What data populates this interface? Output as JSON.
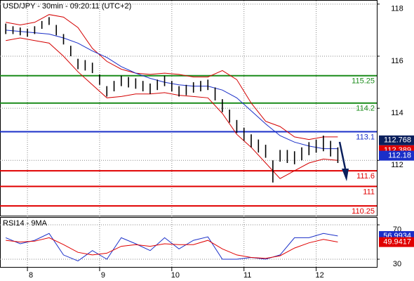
{
  "chart_data": [
    {
      "type": "ohlc",
      "title": "USD/JPY - 30min - 09:20:11 (UTC+2)",
      "x": [
        7.7,
        7.8,
        7.9,
        8.0,
        8.1,
        8.2,
        8.3,
        8.4,
        8.5,
        8.6,
        8.7,
        8.8,
        8.9,
        9.0,
        9.1,
        9.2,
        9.3,
        9.4,
        9.5,
        9.6,
        9.7,
        9.8,
        9.9,
        10.0,
        10.1,
        10.2,
        10.3,
        10.4,
        10.5,
        10.6,
        10.7,
        10.8,
        10.9,
        11.0,
        11.1,
        11.2,
        11.3,
        11.4,
        11.5,
        11.6,
        11.7,
        11.8,
        11.9,
        12.0,
        12.1,
        12.2,
        12.3
      ],
      "high": [
        117.25,
        117.15,
        117.1,
        117.05,
        117.15,
        117.35,
        117.5,
        117.2,
        116.85,
        116.4,
        115.9,
        115.85,
        115.75,
        115.3,
        114.85,
        115.05,
        115.25,
        115.2,
        115.15,
        115.05,
        114.95,
        115.1,
        115.25,
        115.05,
        114.85,
        114.9,
        115.0,
        115.05,
        115.1,
        114.8,
        114.35,
        113.95,
        113.55,
        113.25,
        113.0,
        112.8,
        112.6,
        112.0,
        112.4,
        112.4,
        112.35,
        112.5,
        112.7,
        112.8,
        112.95,
        112.75,
        112.5
      ],
      "low": [
        116.85,
        116.85,
        116.8,
        116.75,
        116.85,
        117.05,
        117.2,
        116.8,
        116.45,
        116.0,
        115.5,
        115.45,
        115.35,
        114.9,
        114.45,
        114.65,
        114.85,
        114.8,
        114.75,
        114.65,
        114.55,
        114.7,
        114.85,
        114.65,
        114.45,
        114.5,
        114.6,
        114.65,
        114.7,
        114.3,
        113.85,
        113.45,
        113.05,
        112.75,
        112.5,
        112.3,
        112.1,
        111.15,
        111.95,
        111.9,
        111.85,
        112.0,
        112.2,
        112.3,
        112.35,
        112.15,
        111.9
      ],
      "color": "#000000",
      "overlay_x": [
        7.7,
        7.9,
        8.1,
        8.3,
        8.5,
        8.7,
        8.9,
        9.1,
        9.3,
        9.5,
        9.7,
        9.9,
        10.1,
        10.3,
        10.5,
        10.7,
        10.9,
        11.1,
        11.3,
        11.5,
        11.7,
        11.9,
        12.1,
        12.3
      ],
      "overlays": [
        {
          "color": "#d40000",
          "values": [
            117.3,
            117.2,
            117.3,
            117.6,
            117.5,
            117.1,
            116.3,
            115.8,
            115.5,
            115.35,
            115.3,
            115.35,
            115.3,
            115.2,
            115.2,
            115.45,
            115.1,
            114.2,
            113.5,
            113.3,
            112.9,
            112.8,
            112.9,
            112.9
          ]
        },
        {
          "color": "#d40000",
          "values": [
            116.6,
            116.7,
            116.6,
            116.5,
            116.0,
            115.4,
            114.9,
            114.4,
            114.45,
            114.55,
            114.55,
            114.6,
            114.5,
            114.45,
            114.4,
            113.8,
            113.0,
            112.5,
            111.9,
            111.3,
            111.6,
            111.9,
            112.05,
            112.0
          ]
        },
        {
          "color": "#1a2fc8",
          "values": [
            117.0,
            116.95,
            116.9,
            116.85,
            116.7,
            116.5,
            116.2,
            115.95,
            115.6,
            115.35,
            115.15,
            115.0,
            114.9,
            114.85,
            114.85,
            114.7,
            114.4,
            113.9,
            113.4,
            112.95,
            112.7,
            112.55,
            112.45,
            112.45
          ]
        }
      ],
      "levels": [
        {
          "value": 115.25,
          "color": "#1a8c1a"
        },
        {
          "value": 114.2,
          "color": "#1a8c1a"
        },
        {
          "value": 113.1,
          "color": "#1a2fc8"
        },
        {
          "value": 111.6,
          "color": "#e00000"
        },
        {
          "value": 111,
          "color": "#e00000"
        },
        {
          "value": 110.25,
          "color": "#e00000"
        }
      ],
      "markers": [
        {
          "value": 112.768,
          "color": "#0a1f5c"
        },
        {
          "value": 112.389,
          "color": "#e00000"
        },
        {
          "value": 112.18,
          "color": "#1a2fc8"
        }
      ],
      "xlim": [
        7.62,
        12.84
      ],
      "xticks": [
        8,
        9,
        10,
        11,
        12
      ],
      "ylim": [
        109.85,
        118.13
      ],
      "yticks": [
        118,
        116,
        114,
        112
      ],
      "grid": true
    },
    {
      "type": "line",
      "title": "RSI14 - 9MA",
      "x": [
        7.7,
        7.9,
        8.1,
        8.3,
        8.5,
        8.7,
        8.9,
        9.1,
        9.3,
        9.5,
        9.7,
        9.9,
        10.1,
        10.3,
        10.5,
        10.7,
        10.9,
        11.1,
        11.3,
        11.5,
        11.7,
        11.9,
        12.1,
        12.3
      ],
      "series": [
        {
          "color": "#1a2fc8",
          "values": [
            55,
            48,
            52,
            60,
            35,
            28,
            40,
            30,
            55,
            48,
            40,
            55,
            42,
            52,
            56,
            30,
            30,
            32,
            30,
            35,
            55,
            55,
            60,
            57
          ]
        },
        {
          "color": "#e00000",
          "values": [
            52,
            50,
            51,
            55,
            47,
            38,
            35,
            37,
            45,
            47,
            45,
            48,
            47,
            47,
            52,
            42,
            35,
            32,
            31,
            34,
            43,
            49,
            53,
            50
          ]
        }
      ],
      "markers": [
        {
          "value": 56.9934,
          "color": "#1a2fc8"
        },
        {
          "value": 49.9417,
          "color": "#e00000"
        }
      ],
      "ylim": [
        21,
        78.2
      ],
      "yticks": [
        70,
        30
      ],
      "grid": true
    }
  ]
}
